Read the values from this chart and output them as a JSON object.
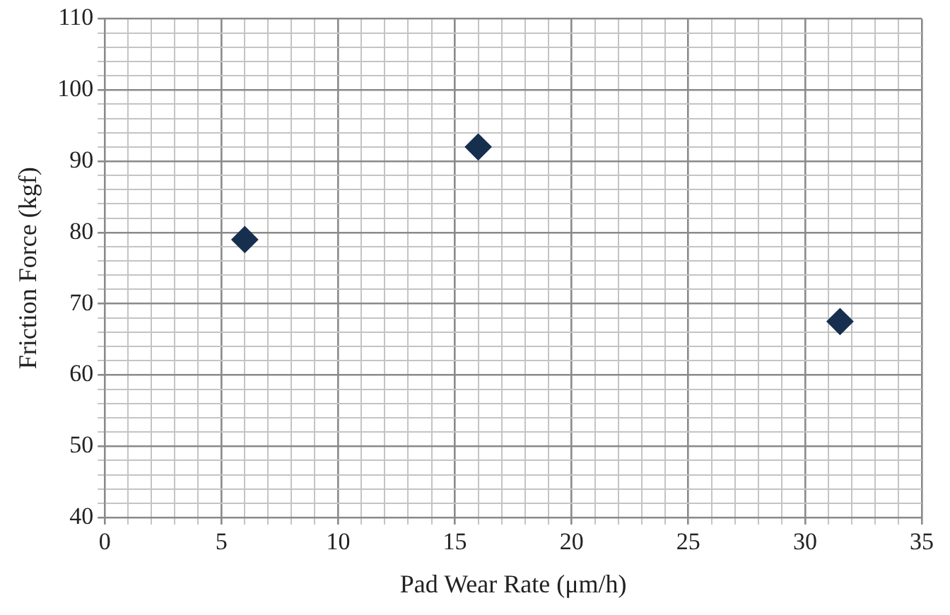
{
  "chart_data": {
    "type": "scatter",
    "xlabel": "Pad Wear Rate (μm/h)",
    "ylabel": "Friction Force (kgf)",
    "x": [
      6,
      16,
      31.5
    ],
    "series": [
      {
        "color": "#172f4f",
        "values": [
          79,
          92,
          67.5
        ]
      }
    ],
    "marker": "diamond",
    "grid": true,
    "legend": false,
    "xlim": [
      0,
      35
    ],
    "xticks": [
      0,
      {
        "value": 1,
        "label": null
      },
      {
        "value": 2,
        "label": null
      },
      {
        "value": 3,
        "label": null
      },
      {
        "value": 4,
        "label": null
      },
      5,
      {
        "value": 6,
        "label": null
      },
      {
        "value": 7,
        "label": null
      },
      {
        "value": 8,
        "label": null
      },
      {
        "value": 9,
        "label": null
      },
      10,
      {
        "value": 11,
        "label": null
      },
      {
        "value": 12,
        "label": null
      },
      {
        "value": 13,
        "label": null
      },
      {
        "value": 14,
        "label": null
      },
      15,
      {
        "value": 16,
        "label": null
      },
      {
        "value": 17,
        "label": null
      },
      {
        "value": 18,
        "label": null
      },
      {
        "value": 19,
        "label": null
      },
      20,
      {
        "value": 21,
        "label": null
      },
      {
        "value": 22,
        "label": null
      },
      {
        "value": 23,
        "label": null
      },
      {
        "value": 24,
        "label": null
      },
      25,
      {
        "value": 26,
        "label": null
      },
      {
        "value": 27,
        "label": null
      },
      {
        "value": 28,
        "label": null
      },
      {
        "value": 29,
        "label": null
      },
      30,
      {
        "value": 31,
        "label": null
      },
      {
        "value": 32,
        "label": null
      },
      {
        "value": 33,
        "label": null
      },
      {
        "value": 34,
        "label": null
      },
      35
    ],
    "ylim": [
      40,
      110
    ],
    "yticks": [
      40,
      {
        "value": 42,
        "label": null
      },
      {
        "value": 44,
        "label": null
      },
      {
        "value": 46,
        "label": null
      },
      {
        "value": 48,
        "label": null
      },
      50,
      {
        "value": 52,
        "label": null
      },
      {
        "value": 54,
        "label": null
      },
      {
        "value": 56,
        "label": null
      },
      {
        "value": 58,
        "label": null
      },
      60,
      {
        "value": 62,
        "label": null
      },
      {
        "value": 64,
        "label": null
      },
      {
        "value": 66,
        "label": null
      },
      {
        "value": 68,
        "label": null
      },
      70,
      {
        "value": 72,
        "label": null
      },
      {
        "value": 74,
        "label": null
      },
      {
        "value": 76,
        "label": null
      },
      {
        "value": 78,
        "label": null
      },
      80,
      {
        "value": 82,
        "label": null
      },
      {
        "value": 84,
        "label": null
      },
      {
        "value": 86,
        "label": null
      },
      {
        "value": 88,
        "label": null
      },
      90,
      {
        "value": 92,
        "label": null
      },
      {
        "value": 94,
        "label": null
      },
      {
        "value": 96,
        "label": null
      },
      {
        "value": 98,
        "label": null
      },
      100,
      {
        "value": 102,
        "label": null
      },
      {
        "value": 104,
        "label": null
      },
      {
        "value": 106,
        "label": null
      },
      {
        "value": 108,
        "label": null
      },
      110
    ]
  }
}
